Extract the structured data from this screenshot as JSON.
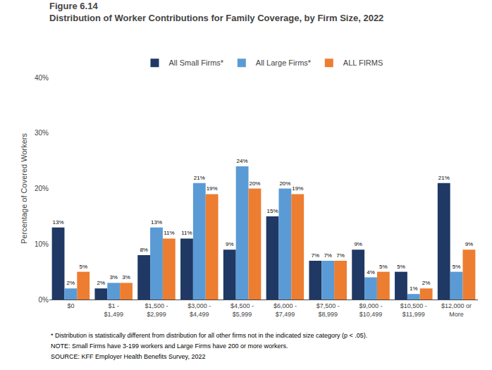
{
  "chart_data": {
    "type": "bar",
    "title": "Figure 6.14",
    "subtitle": "Distribution of Worker Contributions for Family Coverage, by Firm Size, 2022",
    "categories": [
      "$0",
      "$1 -\n$1,499",
      "$1,500 -\n$2,999",
      "$3,000 -\n$4,499",
      "$4,500 -\n$5,999",
      "$6,000 -\n$7,499",
      "$7,500 -\n$8,999",
      "$9,000 -\n$10,499",
      "$10,500 -\n$11,999",
      "$12,000 or\nMore"
    ],
    "series": [
      {
        "name": "All Small Firms*",
        "color": "#1f3864",
        "values": [
          13,
          2,
          8,
          11,
          9,
          15,
          7,
          9,
          5,
          21
        ],
        "value_labels": [
          "13%",
          "2%",
          "8%",
          "11%",
          "9%",
          "15%",
          "7%",
          "9%",
          "5%",
          "21%"
        ]
      },
      {
        "name": "All Large Firms*",
        "color": "#5b9bd5",
        "values": [
          2,
          3,
          13,
          21,
          24,
          20,
          7,
          4,
          1,
          5
        ],
        "value_labels": [
          "2%",
          "3%",
          "13%",
          "21%",
          "24%",
          "20%",
          "7%",
          "4%",
          "1%",
          "5%"
        ]
      },
      {
        "name": "ALL FIRMS",
        "color": "#ed7d31",
        "values": [
          5,
          3,
          11,
          19,
          20,
          19,
          7,
          5,
          2,
          9
        ],
        "value_labels": [
          "5%",
          "3%",
          "11%",
          "19%",
          "20%",
          "19%",
          "7%",
          "5%",
          "2%",
          "9%"
        ]
      }
    ],
    "ylabel": "Percentage of Covered Workers",
    "ylim": [
      0,
      40
    ],
    "yticks": [
      {
        "value": 0,
        "label": "0%"
      },
      {
        "value": 10,
        "label": "10%"
      },
      {
        "value": 20,
        "label": "20%"
      },
      {
        "value": 30,
        "label": "30%"
      },
      {
        "value": 40,
        "label": "40%"
      }
    ],
    "grid": false,
    "legend": "top",
    "data_labels": true,
    "annotations": [
      "* Distribution is statistically different from distribution for all other firms not in the indicated size category (p < .05).",
      "NOTE: Small Firms have 3-199 workers and Large Firms have 200 or more workers.",
      "SOURCE: KFF Employer Health Benefits Survey, 2022"
    ]
  }
}
